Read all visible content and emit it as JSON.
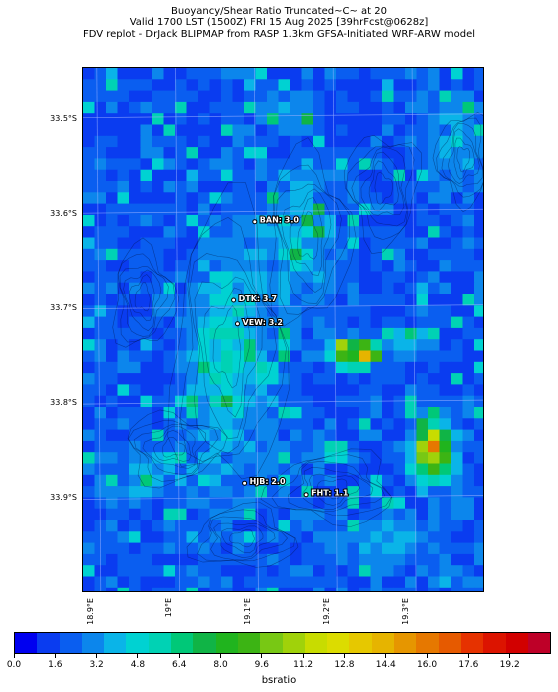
{
  "title": {
    "line1": "Buoyancy/Shear Ratio Truncated~C~    at 20",
    "line2": "Valid 1700 LST (1500Z) FRI 15 Aug 2025 [39hrFcst@0628z]",
    "line3": "FDV replot - DrJack BLIPMAP from RASP 1.3km GFSA-Initiated WRF-ARW model"
  },
  "axes": {
    "lat_labels": [
      "33.5°S",
      "33.6°S",
      "33.7°S",
      "33.8°S",
      "33.9°S"
    ],
    "lon_labels": [
      "18.9°E",
      "19°E",
      "19.1°E",
      "19.2°E",
      "19.3°E"
    ]
  },
  "stations": [
    {
      "name": "BAN: 3.0",
      "lat": -33.611,
      "lon": 19.098
    },
    {
      "name": "DTK: 3.7",
      "lat": -33.693,
      "lon": 19.071
    },
    {
      "name": "VEW: 3.2",
      "lat": -33.718,
      "lon": 19.076
    },
    {
      "name": "HJB: 2.0",
      "lat": -33.885,
      "lon": 19.085
    },
    {
      "name": "FHT: 1.1",
      "lat": -33.897,
      "lon": 19.163
    }
  ],
  "colorbar": {
    "label": "bsratio",
    "ticks": [
      "0.0",
      "1.6",
      "3.2",
      "4.8",
      "6.4",
      "8.0",
      "9.6",
      "11.2",
      "12.8",
      "14.4",
      "16.0",
      "17.6",
      "19.2"
    ],
    "colors": [
      "#0000f0",
      "#0a3cf0",
      "#0a5ef0",
      "#0c86ec",
      "#0ab4e8",
      "#00d2d2",
      "#00d2b4",
      "#00c878",
      "#10b446",
      "#20b41e",
      "#3cb414",
      "#78c814",
      "#a0d20a",
      "#c8dc00",
      "#dcdc00",
      "#e6c800",
      "#e6b400",
      "#e69600",
      "#e67800",
      "#e65a00",
      "#e63200",
      "#dc1400",
      "#d20000",
      "#be0028"
    ]
  }
}
